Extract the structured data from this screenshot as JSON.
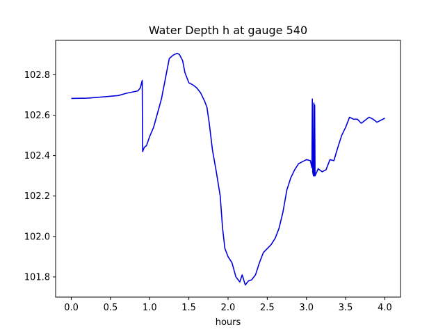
{
  "chart_data": {
    "type": "line",
    "title": "Water Depth h at gauge 540",
    "xlabel": "hours",
    "ylabel": "",
    "xlim": [
      -0.2,
      4.2
    ],
    "ylim": [
      101.7,
      102.97
    ],
    "xticks": [
      0.0,
      0.5,
      1.0,
      1.5,
      2.0,
      2.5,
      3.0,
      3.5,
      4.0
    ],
    "xtick_labels": [
      "0.0",
      "0.5",
      "1.0",
      "1.5",
      "2.0",
      "2.5",
      "3.0",
      "3.5",
      "4.0"
    ],
    "yticks": [
      101.8,
      102.0,
      102.2,
      102.4,
      102.6,
      102.8
    ],
    "ytick_labels": [
      "101.8",
      "102.0",
      "102.2",
      "102.4",
      "102.6",
      "102.8"
    ],
    "grid": false,
    "series": [
      {
        "color": "#0000dd",
        "points": [
          [
            0.0,
            102.683
          ],
          [
            0.2,
            102.684
          ],
          [
            0.4,
            102.69
          ],
          [
            0.6,
            102.697
          ],
          [
            0.7,
            102.708
          ],
          [
            0.85,
            102.72
          ],
          [
            0.88,
            102.735
          ],
          [
            0.905,
            102.772
          ],
          [
            0.91,
            102.42
          ],
          [
            0.93,
            102.44
          ],
          [
            0.96,
            102.45
          ],
          [
            1.0,
            102.495
          ],
          [
            1.05,
            102.54
          ],
          [
            1.1,
            102.61
          ],
          [
            1.15,
            102.68
          ],
          [
            1.2,
            102.78
          ],
          [
            1.25,
            102.88
          ],
          [
            1.3,
            102.897
          ],
          [
            1.35,
            102.906
          ],
          [
            1.38,
            102.9
          ],
          [
            1.42,
            102.87
          ],
          [
            1.45,
            102.81
          ],
          [
            1.5,
            102.76
          ],
          [
            1.55,
            102.75
          ],
          [
            1.6,
            102.735
          ],
          [
            1.65,
            102.71
          ],
          [
            1.7,
            102.67
          ],
          [
            1.73,
            102.64
          ],
          [
            1.76,
            102.56
          ],
          [
            1.8,
            102.43
          ],
          [
            1.85,
            102.32
          ],
          [
            1.9,
            102.2
          ],
          [
            1.93,
            102.04
          ],
          [
            1.96,
            101.94
          ],
          [
            2.0,
            101.9
          ],
          [
            2.05,
            101.87
          ],
          [
            2.1,
            101.8
          ],
          [
            2.15,
            101.775
          ],
          [
            2.18,
            101.81
          ],
          [
            2.22,
            101.76
          ],
          [
            2.26,
            101.78
          ],
          [
            2.3,
            101.785
          ],
          [
            2.35,
            101.81
          ],
          [
            2.4,
            101.87
          ],
          [
            2.45,
            101.92
          ],
          [
            2.5,
            101.94
          ],
          [
            2.55,
            101.96
          ],
          [
            2.6,
            101.99
          ],
          [
            2.65,
            102.04
          ],
          [
            2.7,
            102.12
          ],
          [
            2.75,
            102.23
          ],
          [
            2.8,
            102.29
          ],
          [
            2.85,
            102.33
          ],
          [
            2.9,
            102.36
          ],
          [
            2.95,
            102.37
          ],
          [
            3.0,
            102.38
          ],
          [
            3.05,
            102.375
          ],
          [
            3.07,
            102.34
          ],
          [
            3.075,
            102.68
          ],
          [
            3.08,
            102.32
          ],
          [
            3.09,
            102.3
          ],
          [
            3.095,
            102.66
          ],
          [
            3.1,
            102.3
          ],
          [
            3.105,
            102.65
          ],
          [
            3.11,
            102.3
          ],
          [
            3.15,
            102.335
          ],
          [
            3.2,
            102.32
          ],
          [
            3.25,
            102.33
          ],
          [
            3.3,
            102.38
          ],
          [
            3.35,
            102.375
          ],
          [
            3.4,
            102.44
          ],
          [
            3.45,
            102.5
          ],
          [
            3.5,
            102.54
          ],
          [
            3.55,
            102.59
          ],
          [
            3.6,
            102.58
          ],
          [
            3.65,
            102.58
          ],
          [
            3.7,
            102.56
          ],
          [
            3.75,
            102.575
          ],
          [
            3.8,
            102.59
          ],
          [
            3.85,
            102.58
          ],
          [
            3.9,
            102.565
          ],
          [
            3.95,
            102.575
          ],
          [
            4.0,
            102.585
          ]
        ]
      }
    ]
  }
}
